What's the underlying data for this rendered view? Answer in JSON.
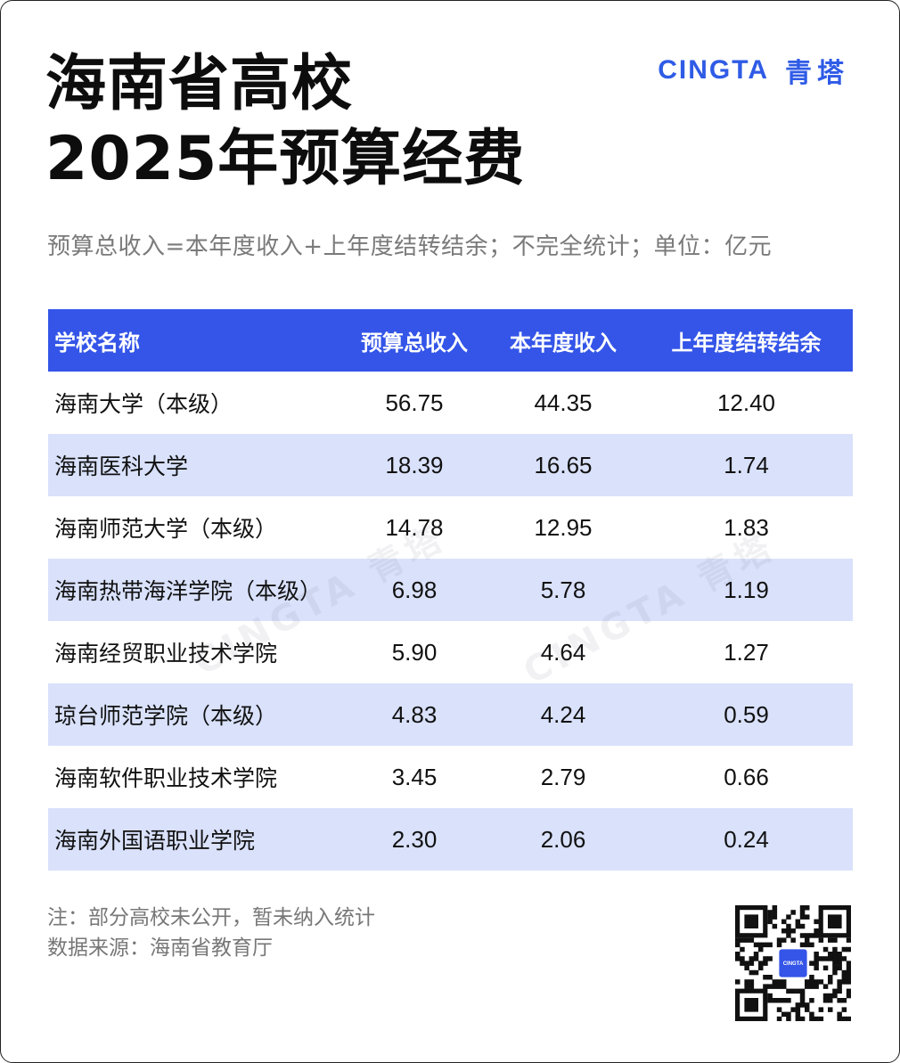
{
  "header": {
    "title_line1": "海南省高校",
    "title_line2": "2025年预算经费",
    "subtitle": "预算总收入=本年度收入+上年度结转结余；不完全统计；单位：亿元"
  },
  "brand": {
    "en": "CINGTA",
    "cn": "青塔",
    "color": "#2f5be6"
  },
  "watermarks": [
    "CINGTA 青塔",
    "CINGTA 青塔"
  ],
  "qr": {
    "center_label": "CINGTA"
  },
  "chart_data": {
    "type": "table",
    "columns": [
      "学校名称",
      "预算总收入",
      "本年度收入",
      "上年度结转结余"
    ],
    "rows": [
      {
        "name": "海南大学（本级）",
        "total": "56.75",
        "current": "44.35",
        "carryover": "12.40"
      },
      {
        "name": "海南医科大学",
        "total": "18.39",
        "current": "16.65",
        "carryover": "1.74"
      },
      {
        "name": "海南师范大学（本级）",
        "total": "14.78",
        "current": "12.95",
        "carryover": "1.83"
      },
      {
        "name": "海南热带海洋学院（本级）",
        "total": "6.98",
        "current": "5.78",
        "carryover": "1.19"
      },
      {
        "name": "海南经贸职业技术学院",
        "total": "5.90",
        "current": "4.64",
        "carryover": "1.27"
      },
      {
        "name": "琼台师范学院（本级）",
        "total": "4.83",
        "current": "4.24",
        "carryover": "0.59"
      },
      {
        "name": "海南软件职业技术学院",
        "total": "3.45",
        "current": "2.79",
        "carryover": "0.66"
      },
      {
        "name": "海南外国语职业学院",
        "total": "2.30",
        "current": "2.06",
        "carryover": "0.24"
      }
    ],
    "header_color": "#3455e8",
    "stripe_color": "#d9e1fb"
  },
  "footer": {
    "note": "注：部分高校未公开，暂未纳入统计",
    "source": "数据来源：海南省教育厅"
  }
}
